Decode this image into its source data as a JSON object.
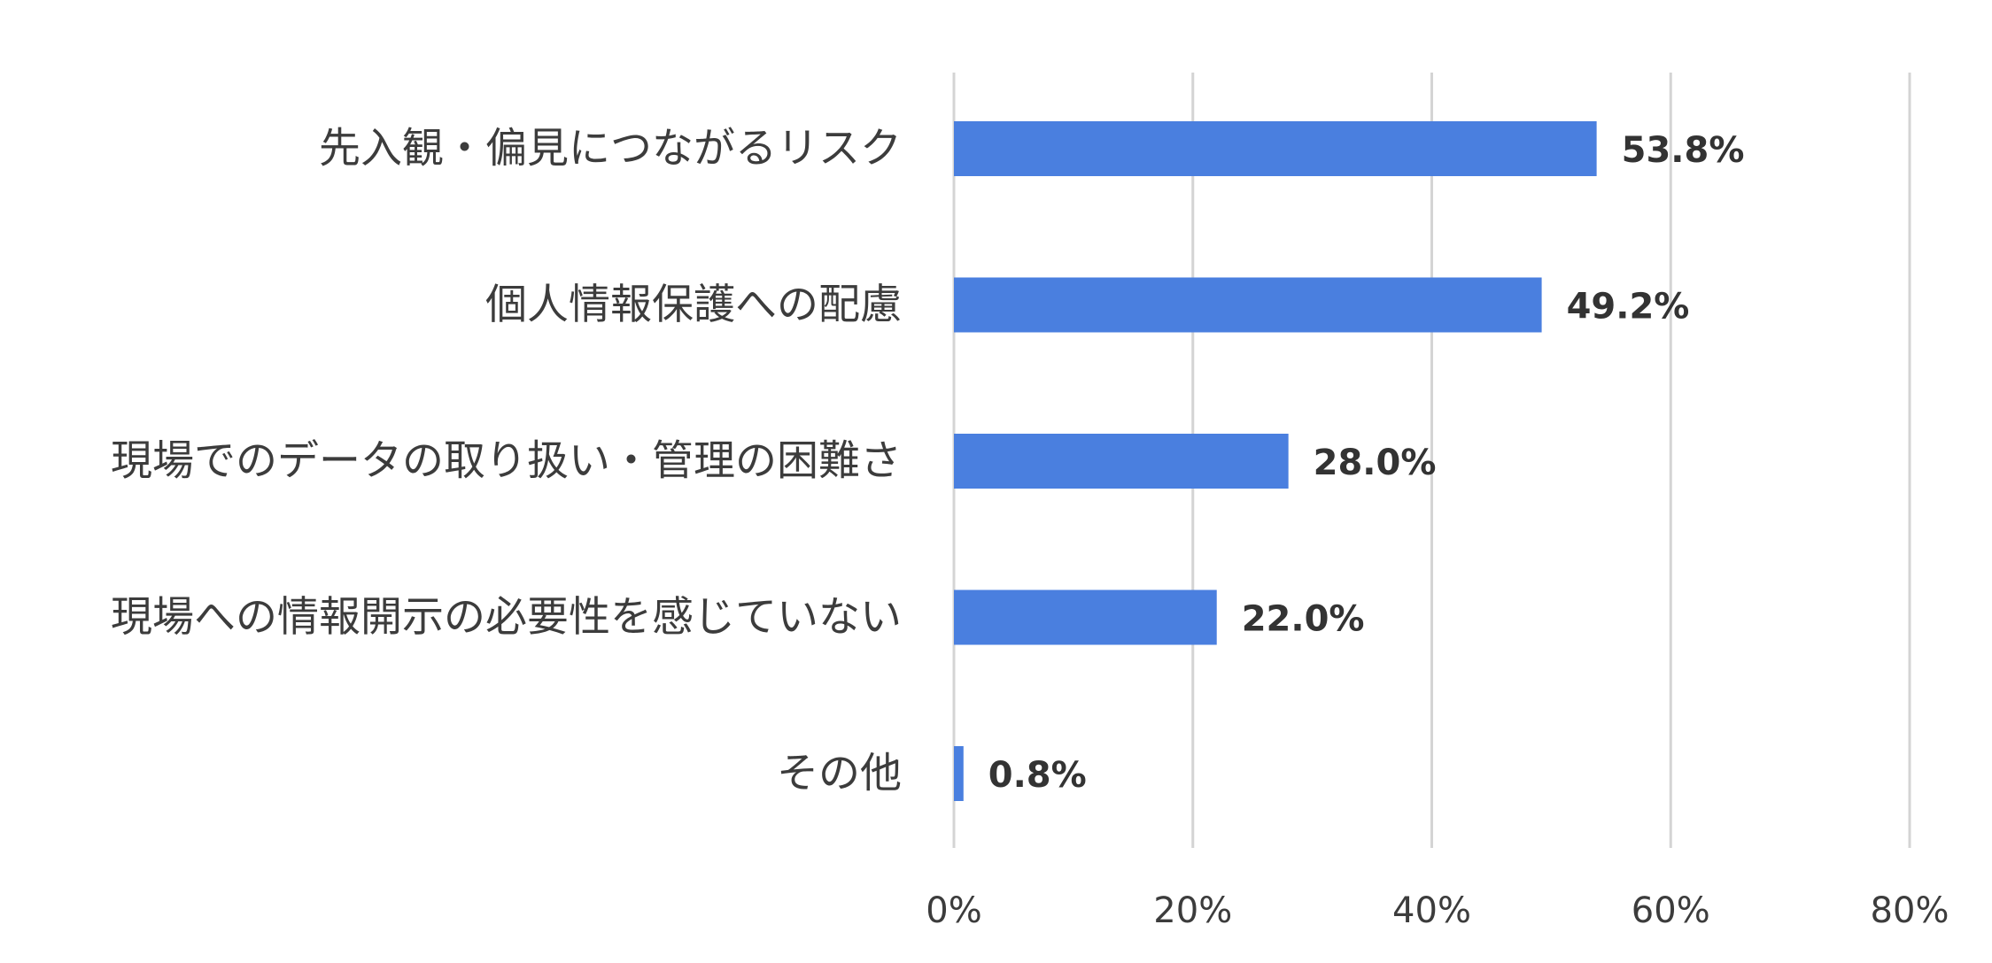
{
  "chart_data": {
    "type": "bar",
    "orientation": "horizontal",
    "categories": [
      "先入観・偏見につながるリスク",
      "個人情報保護への配慮",
      "現場でのデータの取り扱い・管理の困難さ",
      "現場への情報開示の必要性を感じていない",
      "その他"
    ],
    "values": [
      53.8,
      49.2,
      28.0,
      22.0,
      0.8
    ],
    "data_labels": [
      "53.8%",
      "49.2%",
      "28.0%",
      "22.0%",
      "0.8%"
    ],
    "x_ticks": [
      "0%",
      "20%",
      "40%",
      "60%",
      "80%"
    ],
    "x_tick_values": [
      0,
      20,
      40,
      60,
      80
    ],
    "xlim": [
      0,
      80
    ],
    "title": "",
    "xlabel": "",
    "ylabel": "",
    "grid": "vertical",
    "legend": "none",
    "bar_color": "#4a7fdf"
  }
}
